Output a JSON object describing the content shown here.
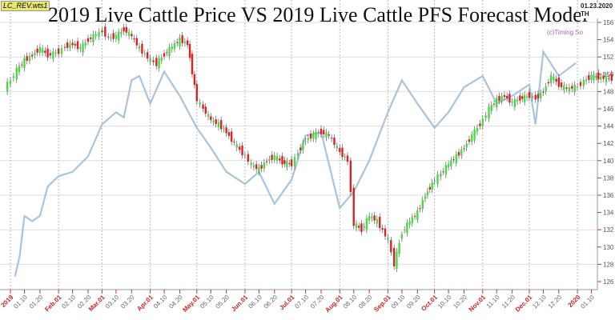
{
  "title": "2019 Live Cattle Price  VS  2019 Live Cattle PFS Forecast Model",
  "tag": "LC_REV.wts1",
  "copyright": "(c)Timing So",
  "date_readout": "01.23.2020 TH",
  "colors": {
    "up": "#44dd44",
    "down": "#dd2222",
    "forecast": "#a8c4dc",
    "month_label": "#cc2222",
    "tick_label": "#666666"
  },
  "chart_data": {
    "type": "line",
    "ylim": [
      125,
      157
    ],
    "y_ticks": [
      126,
      128,
      130,
      132,
      134,
      136,
      138,
      140,
      142,
      144,
      146,
      148,
      150,
      152,
      154,
      156
    ],
    "x_tick_labels": [
      {
        "date": "2019-01-01",
        "label": "2019",
        "month": true
      },
      {
        "date": "2019-01-10",
        "label": "01.10"
      },
      {
        "date": "2019-01-20",
        "label": "01.20"
      },
      {
        "date": "2019-02-01",
        "label": "Feb.01",
        "month": true
      },
      {
        "date": "2019-02-10",
        "label": "02.10"
      },
      {
        "date": "2019-02-20",
        "label": "02.20"
      },
      {
        "date": "2019-03-01",
        "label": "Mar.01",
        "month": true
      },
      {
        "date": "2019-03-10",
        "label": "03.10"
      },
      {
        "date": "2019-03-20",
        "label": "03.20"
      },
      {
        "date": "2019-04-01",
        "label": "Apr.01",
        "month": true
      },
      {
        "date": "2019-04-10",
        "label": "04.10"
      },
      {
        "date": "2019-04-20",
        "label": "04.20"
      },
      {
        "date": "2019-05-01",
        "label": "May.01",
        "month": true
      },
      {
        "date": "2019-05-10",
        "label": "05.10"
      },
      {
        "date": "2019-05-20",
        "label": "05.20"
      },
      {
        "date": "2019-06-01",
        "label": "Jun.01",
        "month": true
      },
      {
        "date": "2019-06-10",
        "label": "06.10"
      },
      {
        "date": "2019-06-20",
        "label": "06.20"
      },
      {
        "date": "2019-07-01",
        "label": "Jul.01",
        "month": true
      },
      {
        "date": "2019-07-10",
        "label": "07.10"
      },
      {
        "date": "2019-07-20",
        "label": "07.20"
      },
      {
        "date": "2019-08-01",
        "label": "Aug.01",
        "month": true
      },
      {
        "date": "2019-08-10",
        "label": "08.10"
      },
      {
        "date": "2019-08-20",
        "label": "08.20"
      },
      {
        "date": "2019-09-01",
        "label": "Sep.01",
        "month": true
      },
      {
        "date": "2019-09-10",
        "label": "09.10"
      },
      {
        "date": "2019-09-20",
        "label": "09.20"
      },
      {
        "date": "2019-10-01",
        "label": "Oct.01",
        "month": true
      },
      {
        "date": "2019-10-10",
        "label": "10.10"
      },
      {
        "date": "2019-10-20",
        "label": "10.20"
      },
      {
        "date": "2019-11-01",
        "label": "Nov.01",
        "month": true
      },
      {
        "date": "2019-11-10",
        "label": "11.10"
      },
      {
        "date": "2019-11-20",
        "label": "11.20"
      },
      {
        "date": "2019-12-01",
        "label": "Dec.01",
        "month": true
      },
      {
        "date": "2019-12-10",
        "label": "12.10"
      },
      {
        "date": "2019-12-20",
        "label": "12.20"
      },
      {
        "date": "2020-01-01",
        "label": "2020",
        "month": true
      },
      {
        "date": "2020-01-10",
        "label": "01.10"
      }
    ],
    "series": [
      {
        "kind": "candlestick",
        "points": [
          [
            "2018-12-28",
            148.5
          ],
          [
            "2019-01-01",
            149.3
          ],
          [
            "2019-01-05",
            150.5
          ],
          [
            "2019-01-10",
            151.6
          ],
          [
            "2019-01-15",
            152.2
          ],
          [
            "2019-01-20",
            153
          ],
          [
            "2019-01-25",
            152.2
          ],
          [
            "2019-02-01",
            152.6
          ],
          [
            "2019-02-05",
            153.2
          ],
          [
            "2019-02-10",
            153.5
          ],
          [
            "2019-02-15",
            153
          ],
          [
            "2019-02-20",
            154
          ],
          [
            "2019-02-25",
            154.6
          ],
          [
            "2019-03-01",
            155
          ],
          [
            "2019-03-05",
            154.2
          ],
          [
            "2019-03-10",
            154.4
          ],
          [
            "2019-03-15",
            155.2
          ],
          [
            "2019-03-20",
            154.4
          ],
          [
            "2019-03-25",
            153
          ],
          [
            "2019-04-01",
            151.6
          ],
          [
            "2019-04-05",
            151.2
          ],
          [
            "2019-04-10",
            152.3
          ],
          [
            "2019-04-15",
            153.2
          ],
          [
            "2019-04-20",
            154
          ],
          [
            "2019-04-25",
            153.5
          ],
          [
            "2019-05-01",
            147
          ],
          [
            "2019-05-05",
            146
          ],
          [
            "2019-05-10",
            144.7
          ],
          [
            "2019-05-15",
            144.2
          ],
          [
            "2019-05-20",
            143.3
          ],
          [
            "2019-05-25",
            142
          ],
          [
            "2019-06-01",
            140.5
          ],
          [
            "2019-06-05",
            139.5
          ],
          [
            "2019-06-10",
            139
          ],
          [
            "2019-06-15",
            140
          ],
          [
            "2019-06-20",
            140.5
          ],
          [
            "2019-06-25",
            139.8
          ],
          [
            "2019-07-01",
            139.6
          ],
          [
            "2019-07-05",
            141
          ],
          [
            "2019-07-10",
            142.4
          ],
          [
            "2019-07-15",
            143
          ],
          [
            "2019-07-20",
            143.3
          ],
          [
            "2019-07-25",
            142.9
          ],
          [
            "2019-08-01",
            141
          ],
          [
            "2019-08-06",
            140
          ],
          [
            "2019-08-10",
            132.7
          ],
          [
            "2019-08-15",
            132
          ],
          [
            "2019-08-20",
            133.6
          ],
          [
            "2019-08-25",
            133
          ],
          [
            "2019-09-01",
            130.8
          ],
          [
            "2019-09-05",
            128
          ],
          [
            "2019-09-10",
            131.7
          ],
          [
            "2019-09-15",
            133
          ],
          [
            "2019-09-20",
            134
          ],
          [
            "2019-09-25",
            136
          ],
          [
            "2019-10-01",
            137.8
          ],
          [
            "2019-10-05",
            138.5
          ],
          [
            "2019-10-10",
            139.6
          ],
          [
            "2019-10-15",
            140.5
          ],
          [
            "2019-10-20",
            141.5
          ],
          [
            "2019-10-25",
            142.9
          ],
          [
            "2019-11-01",
            144.7
          ],
          [
            "2019-11-05",
            146
          ],
          [
            "2019-11-10",
            147
          ],
          [
            "2019-11-15",
            147.5
          ],
          [
            "2019-11-20",
            146.7
          ],
          [
            "2019-11-25",
            147.2
          ],
          [
            "2019-12-01",
            147.5
          ],
          [
            "2019-12-05",
            147.2
          ],
          [
            "2019-12-10",
            148
          ],
          [
            "2019-12-15",
            149.8
          ],
          [
            "2019-12-20",
            148.8
          ],
          [
            "2019-12-25",
            148.3
          ],
          [
            "2020-01-01",
            148.6
          ],
          [
            "2020-01-05",
            149.2
          ],
          [
            "2020-01-10",
            149.8
          ],
          [
            "2020-01-16",
            149.6
          ],
          [
            "2020-01-23",
            149.5
          ]
        ]
      },
      {
        "kind": "line",
        "points": [
          [
            "2019-01-04",
            126.6
          ],
          [
            "2019-01-07",
            129
          ],
          [
            "2019-01-10",
            133.6
          ],
          [
            "2019-01-15",
            133
          ],
          [
            "2019-01-20",
            133.6
          ],
          [
            "2019-01-25",
            137
          ],
          [
            "2019-02-01",
            138.2
          ],
          [
            "2019-02-10",
            138.7
          ],
          [
            "2019-02-20",
            140.5
          ],
          [
            "2019-03-01",
            144.2
          ],
          [
            "2019-03-10",
            145.6
          ],
          [
            "2019-03-15",
            145
          ],
          [
            "2019-03-20",
            149.3
          ],
          [
            "2019-03-25",
            149.8
          ],
          [
            "2019-04-01",
            146.6
          ],
          [
            "2019-04-10",
            150.3
          ],
          [
            "2019-04-20",
            147.5
          ],
          [
            "2019-05-01",
            143.8
          ],
          [
            "2019-05-10",
            141.5
          ],
          [
            "2019-05-20",
            138.7
          ],
          [
            "2019-06-01",
            137.3
          ],
          [
            "2019-06-10",
            138.7
          ],
          [
            "2019-06-20",
            135
          ],
          [
            "2019-07-01",
            137.8
          ],
          [
            "2019-07-10",
            142.9
          ],
          [
            "2019-07-20",
            143.3
          ],
          [
            "2019-08-01",
            134.5
          ],
          [
            "2019-08-10",
            136.4
          ],
          [
            "2019-08-20",
            140
          ],
          [
            "2019-09-01",
            145.6
          ],
          [
            "2019-09-10",
            149.3
          ],
          [
            "2019-09-20",
            146.6
          ],
          [
            "2019-10-01",
            143.8
          ],
          [
            "2019-10-10",
            145.6
          ],
          [
            "2019-10-20",
            148.5
          ],
          [
            "2019-11-01",
            149.8
          ],
          [
            "2019-11-10",
            146.6
          ],
          [
            "2019-11-20",
            147.5
          ],
          [
            "2019-12-01",
            148.8
          ],
          [
            "2019-12-05",
            144.2
          ],
          [
            "2019-12-10",
            152.6
          ],
          [
            "2019-12-20",
            149.8
          ],
          [
            "2019-12-31",
            151.3
          ]
        ]
      }
    ]
  }
}
